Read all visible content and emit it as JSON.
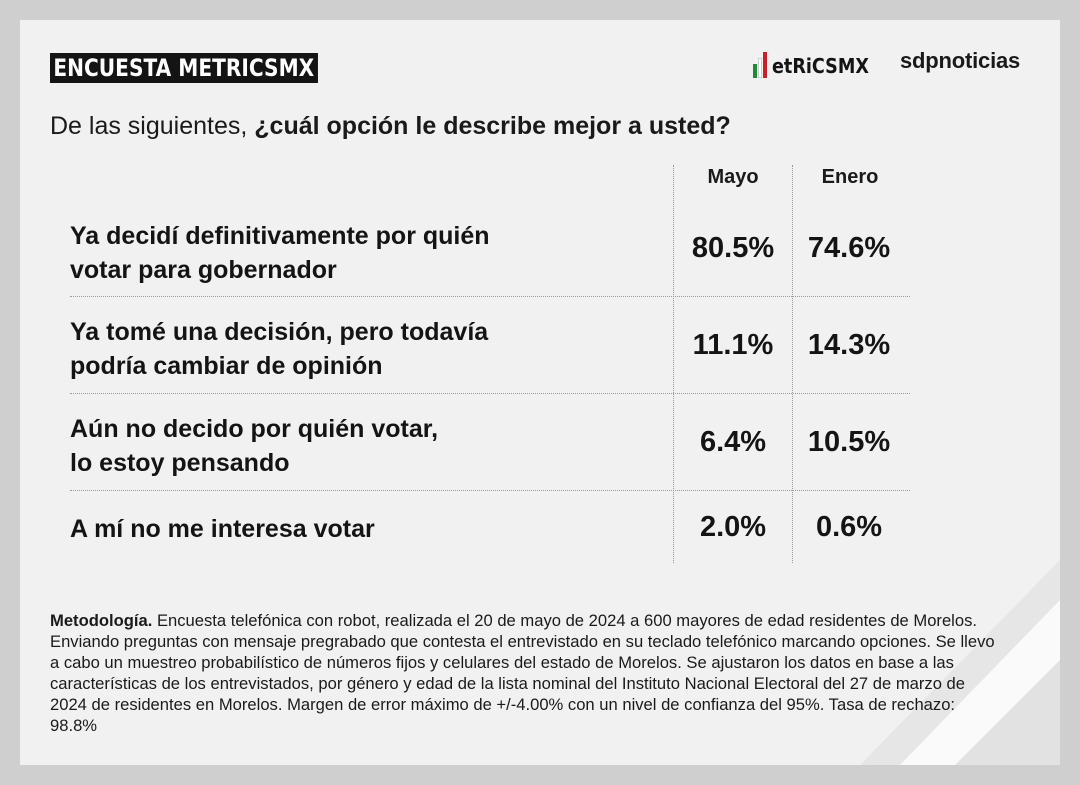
{
  "header": {
    "title": "ENCUESTA METRICSMX",
    "logo_metrics": "etRiCSMX",
    "logo_sdp": "sdpnoticias"
  },
  "question": {
    "lead": "De las siguientes, ",
    "strong": "¿cuál opción le describe mejor a usted?"
  },
  "columns": [
    "Mayo",
    "Enero"
  ],
  "chart_data": {
    "type": "table",
    "columns": [
      "Mayo",
      "Enero"
    ],
    "rows": [
      {
        "label_line1": "Ya decidí definitivamente por quién",
        "label_line2": "votar para gobernador",
        "Mayo": "80.5%",
        "Enero": "74.6%"
      },
      {
        "label_line1": "Ya tomé una decisión, pero todavía",
        "label_line2": "podría cambiar de opinión",
        "Mayo": "11.1%",
        "Enero": "14.3%"
      },
      {
        "label_line1": "Aún no decido por quién votar,",
        "label_line2": "lo estoy pensando",
        "Mayo": "6.4%",
        "Enero": "10.5%"
      },
      {
        "label_line1": "A mí no me interesa votar",
        "label_line2": "",
        "Mayo": "2.0%",
        "Enero": "0.6%"
      }
    ]
  },
  "methodology": {
    "label": "Metodología.",
    "text": " Encuesta telefónica con robot, realizada el 20 de mayo de 2024 a 600 mayores de edad residentes de Morelos. Enviando preguntas con mensaje pregrabado que contesta el entrevistado en su teclado telefónico marcando opciones. Se llevo a cabo un muestreo probabilístico de números fijos y celulares del estado de Morelos. Se ajustaron los datos en base a las características de los entrevistados, por género y edad de la lista nominal del Instituto Nacional Electoral del 27 de marzo de 2024 de residentes en Morelos. Margen de error máximo de +/-4.00% con un nivel de confianza del 95%. Tasa de rechazo: 98.8%"
  },
  "colors": {
    "background": "#cfcfcf",
    "card": "#f1f1f1",
    "title_bg": "#141414",
    "flag_green": "#1f8a3a",
    "flag_white": "#ffffff",
    "flag_red": "#c8202a"
  }
}
